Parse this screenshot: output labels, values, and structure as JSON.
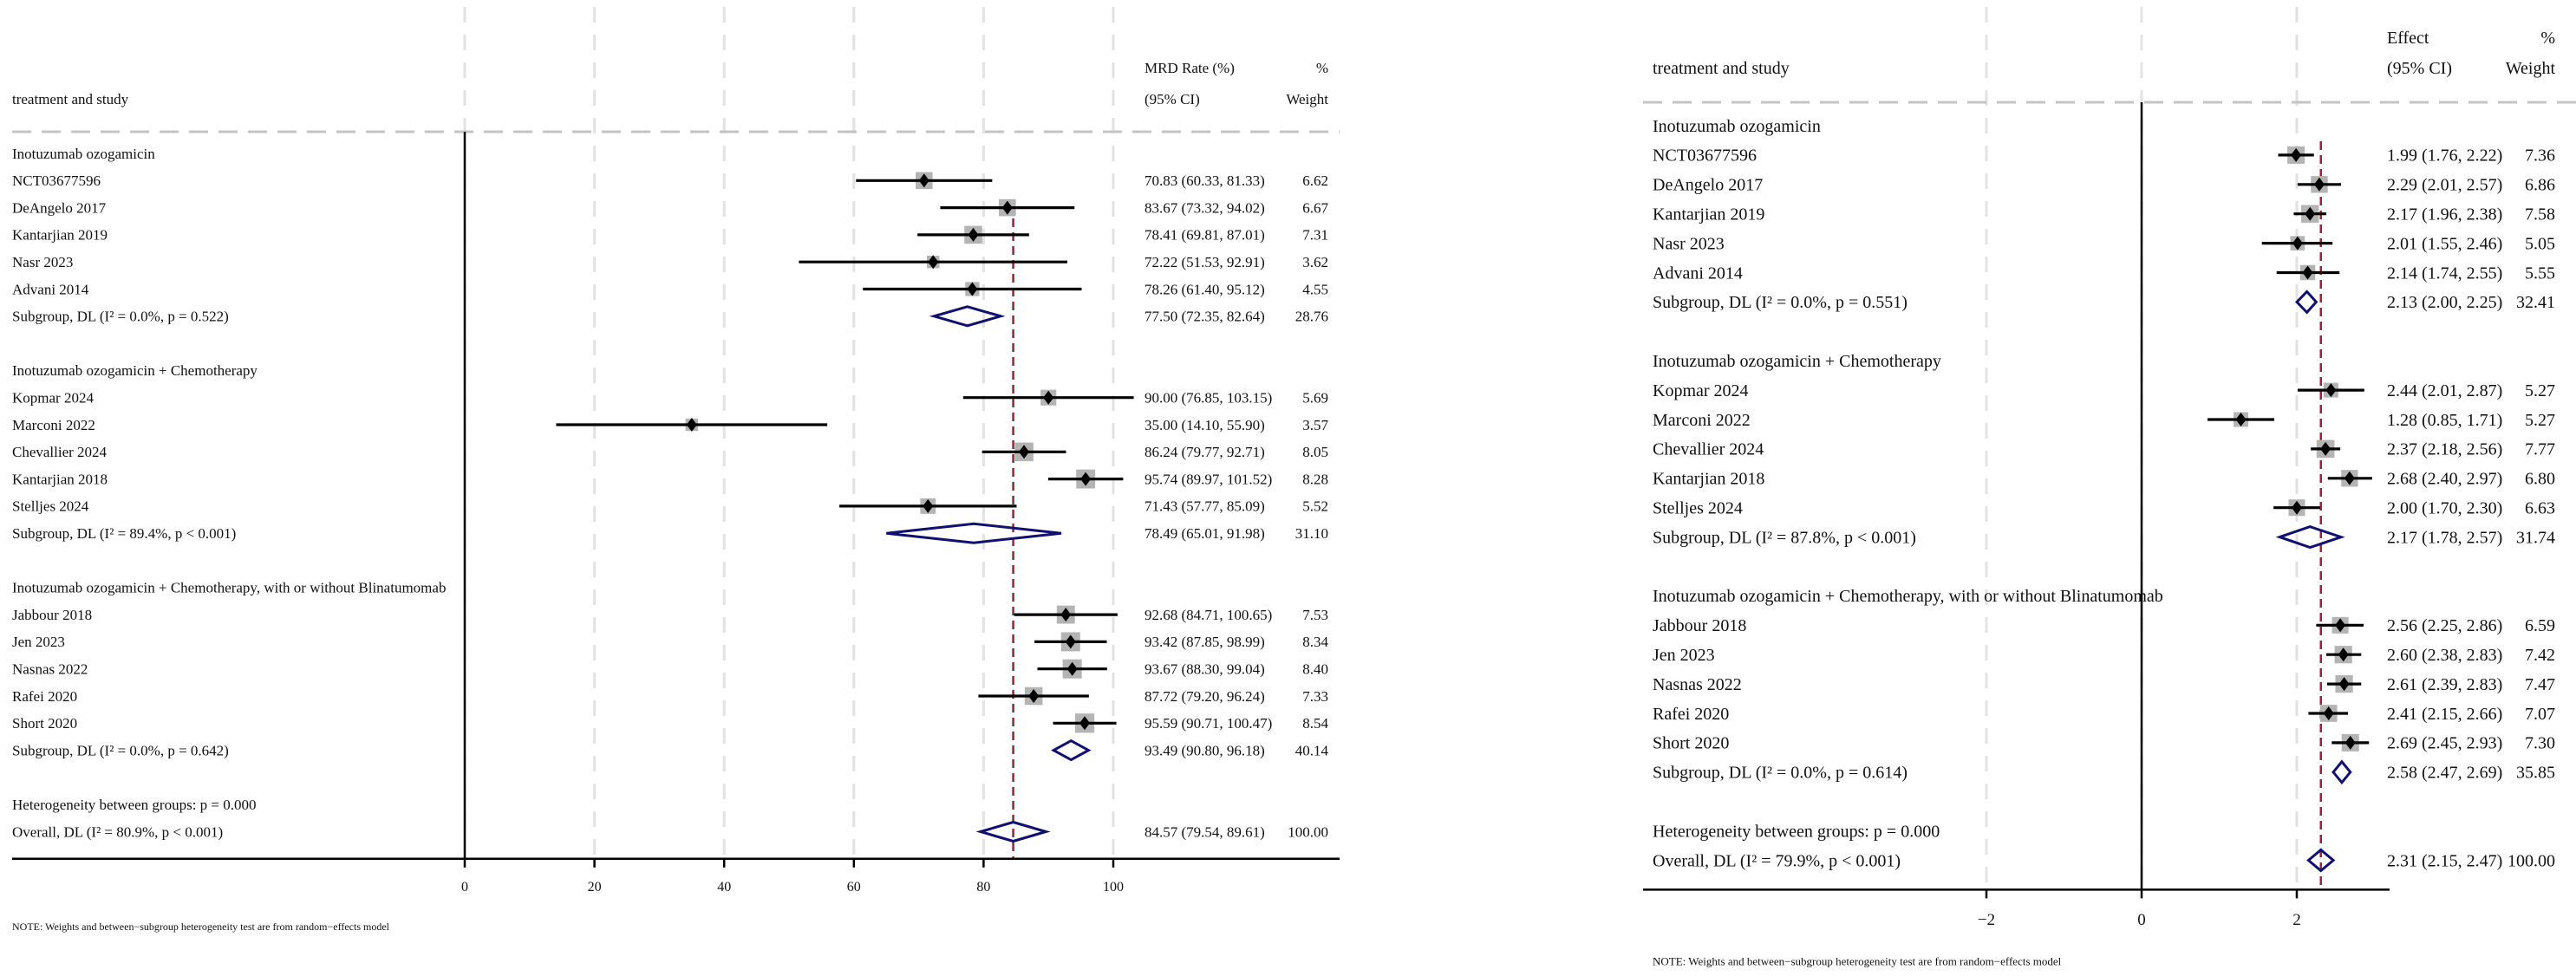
{
  "chart_data": [
    {
      "type": "forest",
      "header": {
        "study_col": "treatment and study",
        "estimate_line1": "MRD Rate (%)",
        "estimate_line2": "(95% CI)",
        "weight_line1": "%",
        "weight_line2": "Weight"
      },
      "xticks": [
        0,
        20,
        40,
        60,
        80,
        100
      ],
      "xlim": [
        0,
        100
      ],
      "groups": [
        {
          "label": "Inotuzumab ozogamicin",
          "studies": [
            {
              "label": "NCT03677596",
              "est": 70.83,
              "lo": 60.33,
              "hi": 81.33,
              "ci_text": "70.83 (60.33, 81.33)",
              "weight": "6.62"
            },
            {
              "label": "DeAngelo 2017",
              "est": 83.67,
              "lo": 73.32,
              "hi": 94.02,
              "ci_text": "83.67 (73.32, 94.02)",
              "weight": "6.67"
            },
            {
              "label": "Kantarjian 2019",
              "est": 78.41,
              "lo": 69.81,
              "hi": 87.01,
              "ci_text": "78.41 (69.81, 87.01)",
              "weight": "7.31"
            },
            {
              "label": "Nasr 2023",
              "est": 72.22,
              "lo": 51.53,
              "hi": 92.91,
              "ci_text": "72.22 (51.53, 92.91)",
              "weight": "3.62"
            },
            {
              "label": "Advani 2014",
              "est": 78.26,
              "lo": 61.4,
              "hi": 95.12,
              "ci_text": "78.26 (61.40, 95.12)",
              "weight": "4.55"
            }
          ],
          "subgroup": {
            "label": "Subgroup, DL (I² = 0.0%, p = 0.522)",
            "est": 77.5,
            "lo": 72.35,
            "hi": 82.64,
            "ci_text": "77.50 (72.35, 82.64)",
            "weight": "28.76"
          }
        },
        {
          "label": "Inotuzumab ozogamicin +  Chemotherapy",
          "studies": [
            {
              "label": "Kopmar 2024",
              "est": 90.0,
              "lo": 76.85,
              "hi": 103.15,
              "ci_text": "90.00 (76.85, 103.15)",
              "weight": "5.69"
            },
            {
              "label": "Marconi 2022",
              "est": 35.0,
              "lo": 14.1,
              "hi": 55.9,
              "ci_text": "35.00 (14.10, 55.90)",
              "weight": "3.57"
            },
            {
              "label": "Chevallier 2024",
              "est": 86.24,
              "lo": 79.77,
              "hi": 92.71,
              "ci_text": "86.24 (79.77, 92.71)",
              "weight": "8.05"
            },
            {
              "label": "Kantarjian 2018",
              "est": 95.74,
              "lo": 89.97,
              "hi": 101.52,
              "ci_text": "95.74 (89.97, 101.52)",
              "weight": "8.28"
            },
            {
              "label": "Stelljes 2024",
              "est": 71.43,
              "lo": 57.77,
              "hi": 85.09,
              "ci_text": "71.43 (57.77, 85.09)",
              "weight": "5.52"
            }
          ],
          "subgroup": {
            "label": "Subgroup, DL (I² = 89.4%, p < 0.001)",
            "est": 78.49,
            "lo": 65.01,
            "hi": 91.98,
            "ci_text": "78.49 (65.01, 91.98)",
            "weight": "31.10"
          }
        },
        {
          "label": "Inotuzumab ozogamicin + Chemotherapy, with or without Blinatumomab",
          "studies": [
            {
              "label": "Jabbour 2018",
              "est": 92.68,
              "lo": 84.71,
              "hi": 100.65,
              "ci_text": "92.68 (84.71, 100.65)",
              "weight": "7.53"
            },
            {
              "label": "Jen 2023",
              "est": 93.42,
              "lo": 87.85,
              "hi": 98.99,
              "ci_text": "93.42 (87.85, 98.99)",
              "weight": "8.34"
            },
            {
              "label": "Nasnas 2022",
              "est": 93.67,
              "lo": 88.3,
              "hi": 99.04,
              "ci_text": "93.67 (88.30, 99.04)",
              "weight": "8.40"
            },
            {
              "label": "Rafei 2020",
              "est": 87.72,
              "lo": 79.2,
              "hi": 96.24,
              "ci_text": "87.72 (79.20, 96.24)",
              "weight": "7.33"
            },
            {
              "label": "Short 2020",
              "est": 95.59,
              "lo": 90.71,
              "hi": 100.47,
              "ci_text": "95.59 (90.71, 100.47)",
              "weight": "8.54"
            }
          ],
          "subgroup": {
            "label": "Subgroup, DL (I² = 0.0%, p = 0.642)",
            "est": 93.49,
            "lo": 90.8,
            "hi": 96.18,
            "ci_text": "93.49 (90.80, 96.18)",
            "weight": "40.14"
          }
        }
      ],
      "heterogeneity": "Heterogeneity between groups: p = 0.000",
      "overall": {
        "label": "Overall, DL (I² = 80.9%, p < 0.001)",
        "est": 84.57,
        "lo": 79.54,
        "hi": 89.61,
        "ci_text": "84.57 (79.54, 89.61)",
        "weight": "100.00"
      },
      "note": "NOTE: Weights and between−subgroup heterogeneity test are from random−effects model"
    },
    {
      "type": "forest",
      "header": {
        "study_col": "treatment and study",
        "estimate_line1": "Effect",
        "estimate_line2": "(95% CI)",
        "weight_line1": "%",
        "weight_line2": "Weight"
      },
      "xticks": [
        -2,
        0,
        2
      ],
      "xlim": [
        -4.3,
        3.2
      ],
      "groups": [
        {
          "label": "Inotuzumab ozogamicin",
          "studies": [
            {
              "label": "NCT03677596",
              "est": 1.99,
              "lo": 1.76,
              "hi": 2.22,
              "ci_text": "1.99 (1.76, 2.22)",
              "weight": "7.36"
            },
            {
              "label": "DeAngelo 2017",
              "est": 2.29,
              "lo": 2.01,
              "hi": 2.57,
              "ci_text": "2.29 (2.01, 2.57)",
              "weight": "6.86"
            },
            {
              "label": "Kantarjian 2019",
              "est": 2.17,
              "lo": 1.96,
              "hi": 2.38,
              "ci_text": "2.17 (1.96, 2.38)",
              "weight": "7.58"
            },
            {
              "label": "Nasr 2023",
              "est": 2.01,
              "lo": 1.55,
              "hi": 2.46,
              "ci_text": "2.01 (1.55, 2.46)",
              "weight": "5.05"
            },
            {
              "label": "Advani 2014",
              "est": 2.14,
              "lo": 1.74,
              "hi": 2.55,
              "ci_text": "2.14 (1.74, 2.55)",
              "weight": "5.55"
            }
          ],
          "subgroup": {
            "label": "Subgroup, DL (I² = 0.0%, p = 0.551)",
            "est": 2.13,
            "lo": 2.0,
            "hi": 2.25,
            "ci_text": "2.13 (2.00, 2.25)",
            "weight": "32.41"
          }
        },
        {
          "label": "Inotuzumab ozogamicin +  Chemotherapy",
          "studies": [
            {
              "label": "Kopmar 2024",
              "est": 2.44,
              "lo": 2.01,
              "hi": 2.87,
              "ci_text": "2.44 (2.01, 2.87)",
              "weight": "5.27"
            },
            {
              "label": "Marconi 2022",
              "est": 1.28,
              "lo": 0.85,
              "hi": 1.71,
              "ci_text": "1.28 (0.85, 1.71)",
              "weight": "5.27"
            },
            {
              "label": "Chevallier 2024",
              "est": 2.37,
              "lo": 2.18,
              "hi": 2.56,
              "ci_text": "2.37 (2.18, 2.56)",
              "weight": "7.77"
            },
            {
              "label": "Kantarjian 2018",
              "est": 2.68,
              "lo": 2.4,
              "hi": 2.97,
              "ci_text": "2.68 (2.40, 2.97)",
              "weight": "6.80"
            },
            {
              "label": "Stelljes 2024",
              "est": 2.0,
              "lo": 1.7,
              "hi": 2.3,
              "ci_text": "2.00 (1.70, 2.30)",
              "weight": "6.63"
            }
          ],
          "subgroup": {
            "label": "Subgroup, DL (I² = 87.8%, p < 0.001)",
            "est": 2.17,
            "lo": 1.78,
            "hi": 2.57,
            "ci_text": "2.17 (1.78, 2.57)",
            "weight": "31.74"
          }
        },
        {
          "label": "Inotuzumab ozogamicin + Chemotherapy, with or without Blinatumomab",
          "studies": [
            {
              "label": "Jabbour 2018",
              "est": 2.56,
              "lo": 2.25,
              "hi": 2.86,
              "ci_text": "2.56 (2.25, 2.86)",
              "weight": "6.59"
            },
            {
              "label": "Jen 2023",
              "est": 2.6,
              "lo": 2.38,
              "hi": 2.83,
              "ci_text": "2.60 (2.38, 2.83)",
              "weight": "7.42"
            },
            {
              "label": "Nasnas 2022",
              "est": 2.61,
              "lo": 2.39,
              "hi": 2.83,
              "ci_text": "2.61 (2.39, 2.83)",
              "weight": "7.47"
            },
            {
              "label": "Rafei 2020",
              "est": 2.41,
              "lo": 2.15,
              "hi": 2.66,
              "ci_text": "2.41 (2.15, 2.66)",
              "weight": "7.07"
            },
            {
              "label": "Short 2020",
              "est": 2.69,
              "lo": 2.45,
              "hi": 2.93,
              "ci_text": "2.69 (2.45, 2.93)",
              "weight": "7.30"
            }
          ],
          "subgroup": {
            "label": "Subgroup, DL (I² = 0.0%, p = 0.614)",
            "est": 2.58,
            "lo": 2.47,
            "hi": 2.69,
            "ci_text": "2.58 (2.47, 2.69)",
            "weight": "35.85"
          }
        }
      ],
      "heterogeneity": "Heterogeneity between groups: p = 0.000",
      "overall": {
        "label": "Overall, DL (I² = 79.9%, p < 0.001)",
        "est": 2.31,
        "lo": 2.15,
        "hi": 2.47,
        "ci_text": "2.31 (2.15, 2.47)",
        "weight": "100.00"
      },
      "note": "NOTE: Weights and between−subgroup heterogeneity test are from random−effects model"
    }
  ],
  "colors": {
    "ci_line": "#000000",
    "weight_box": "#b4b4b4",
    "pooled_diamond": "#101070",
    "overall_line": "#9b2335",
    "grid": "#e2e2e2",
    "separator": "#c4c4c4"
  }
}
